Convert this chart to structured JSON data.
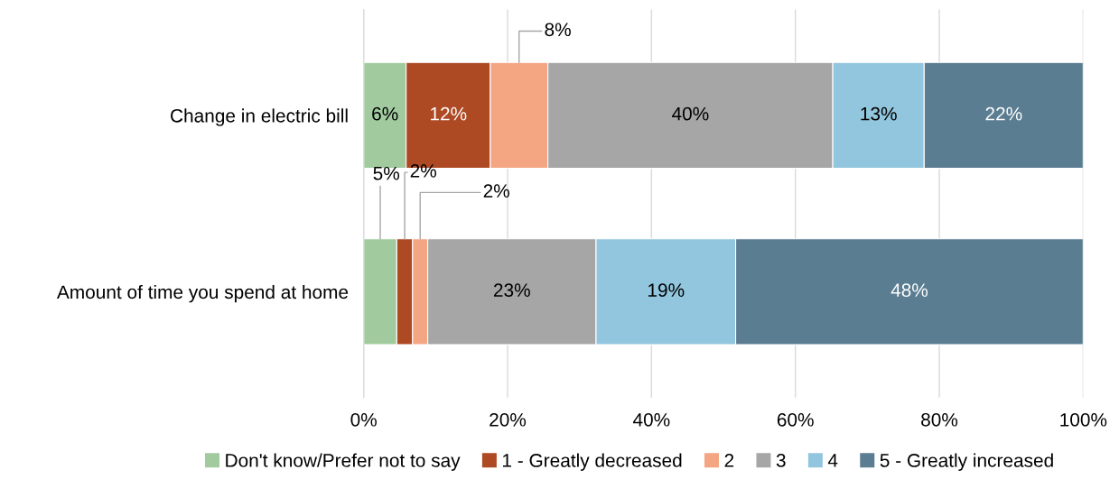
{
  "chart_data": {
    "type": "bar",
    "orientation": "horizontal",
    "stacked": true,
    "categories": [
      "Change in electric bill",
      "Amount of time you spend at home"
    ],
    "series": [
      {
        "name": "Don't know/Prefer not to say",
        "color": "#a1cb9f",
        "values": [
          5.9,
          4.6
        ],
        "value_labels": [
          "6%",
          "5%"
        ]
      },
      {
        "name": "1 - Greatly decreased",
        "color": "#ae4a23",
        "values": [
          11.7,
          2.2
        ],
        "value_labels": [
          "12%",
          "2%"
        ]
      },
      {
        "name": "2",
        "color": "#f4a582",
        "values": [
          8.0,
          2.1
        ],
        "value_labels": [
          "8%",
          "2%"
        ]
      },
      {
        "name": "3",
        "color": "#a6a6a6",
        "values": [
          39.6,
          23.4
        ],
        "value_labels": [
          "40%",
          "23%"
        ]
      },
      {
        "name": "4",
        "color": "#92c5de",
        "values": [
          12.7,
          19.4
        ],
        "value_labels": [
          "13%",
          "19%"
        ]
      },
      {
        "name": "5 - Greatly increased",
        "color": "#5b7d91",
        "values": [
          22.1,
          48.3
        ],
        "value_labels": [
          "22%",
          "48%"
        ]
      }
    ],
    "xlim": [
      0,
      100
    ],
    "xticks": [
      {
        "value": 0,
        "label": "0%"
      },
      {
        "value": 20,
        "label": "20%"
      },
      {
        "value": 40,
        "label": "40%"
      },
      {
        "value": 60,
        "label": "60%"
      },
      {
        "value": 80,
        "label": "80%"
      },
      {
        "value": 100,
        "label": "100%"
      }
    ],
    "grid": "x",
    "legend": "bottom"
  }
}
